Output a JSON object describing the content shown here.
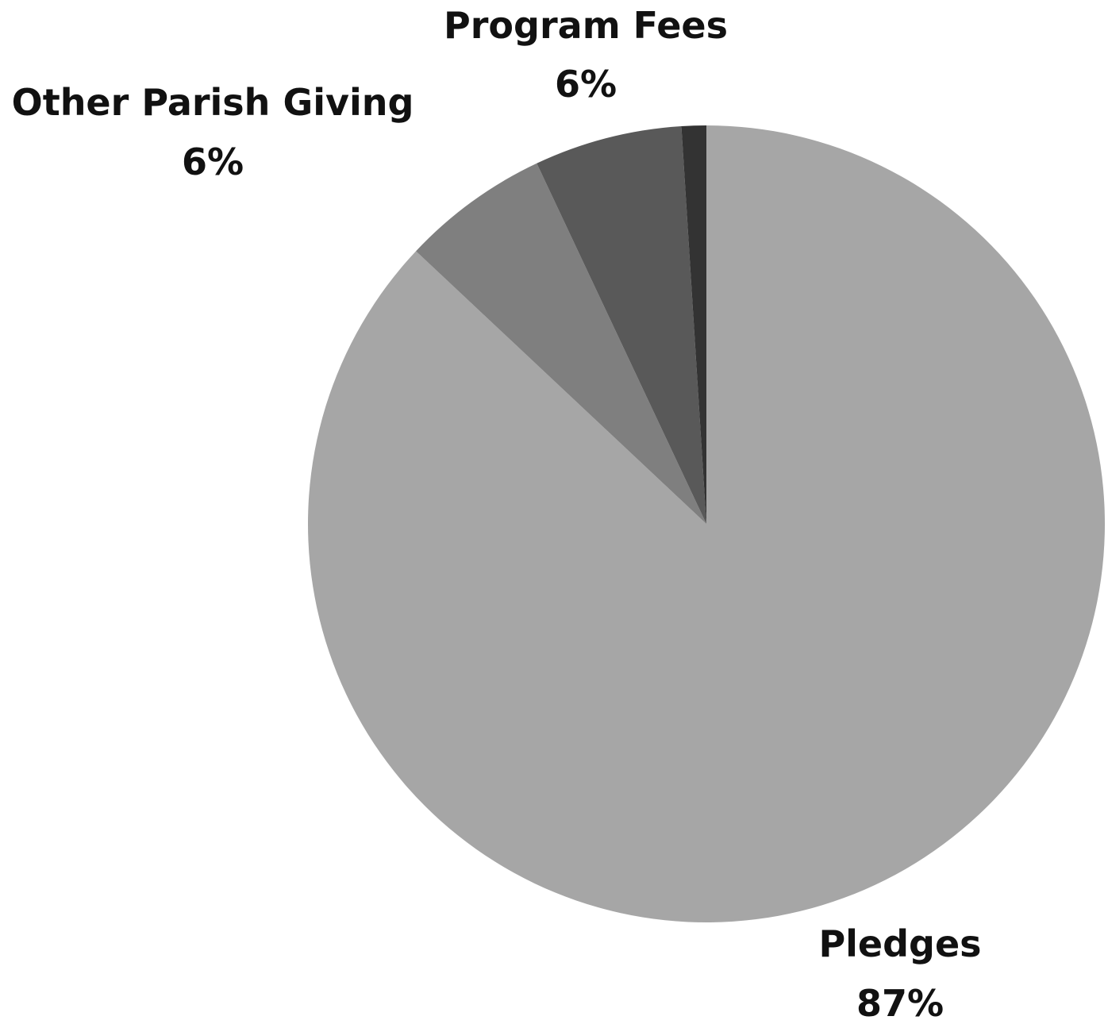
{
  "chart_data": {
    "type": "pie",
    "start_angle_deg": 0,
    "direction": "clockwise",
    "slices": [
      {
        "name": "Pledges",
        "value": 87,
        "percent_label": "87%",
        "color": "#a6a6a6",
        "show_label": true
      },
      {
        "name": "Other Parish Giving",
        "value": 6,
        "percent_label": "6%",
        "color": "#7f7f7f",
        "show_label": true
      },
      {
        "name": "Program Fees",
        "value": 6,
        "percent_label": "6%",
        "color": "#595959",
        "show_label": true
      },
      {
        "name": "",
        "value": 1,
        "percent_label": "",
        "color": "#333333",
        "show_label": false
      }
    ]
  }
}
